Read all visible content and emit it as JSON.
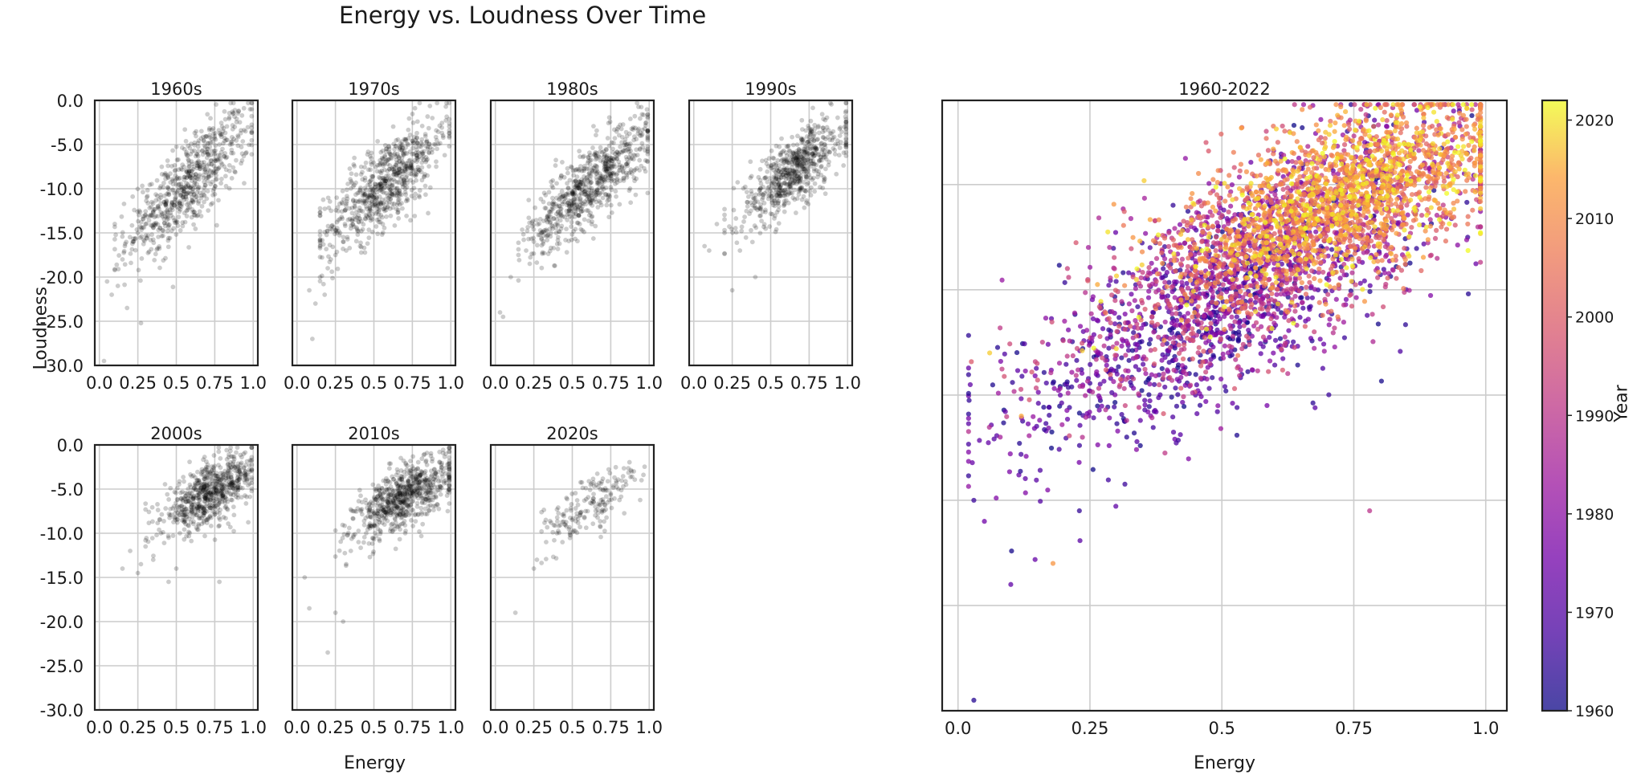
{
  "figure": {
    "title": "Energy vs. Loudness Over Time",
    "shared_ylabel": "Loudness",
    "shared_xlabel_small": "Energy",
    "large_xlabel": "Energy",
    "colorbar_label": "Year"
  },
  "chart_data": [
    {
      "type": "scatter",
      "title": "1960s",
      "xlabel": "",
      "ylabel": "Loudness",
      "xlim": [
        -0.03,
        1.03
      ],
      "ylim": [
        -30.0,
        0.0
      ],
      "xticks": [
        0.0,
        0.25,
        0.5,
        0.75,
        1.0
      ],
      "xtick_labels": [
        "0.0",
        "0.25",
        "0.5",
        "0.75",
        "1.0"
      ],
      "yticks": [
        0.0,
        -5.0,
        -10.0,
        -15.0,
        -20.0,
        -25.0,
        -30.0
      ],
      "ytick_labels": [
        "0.0",
        "-5.0",
        "-10.0",
        "-15.0",
        "-20.0",
        "-25.0",
        "-30.0"
      ],
      "grid": true,
      "point_color": "#000000",
      "point_alpha": 0.2,
      "x": [
        0.05,
        0.12,
        0.18,
        0.22,
        0.3,
        0.35,
        0.4,
        0.45,
        0.5,
        0.55,
        0.6,
        0.65,
        0.7,
        0.75,
        0.8,
        0.85,
        0.9,
        0.95,
        0.98,
        0.03,
        0.08,
        0.15,
        0.25,
        0.33,
        0.42,
        0.48,
        0.58,
        0.68,
        0.78,
        0.88
      ],
      "y": [
        -20.5,
        -21.0,
        -23.5,
        -16.0,
        -14.0,
        -12.5,
        -11.0,
        -10.0,
        -10.5,
        -9.0,
        -8.0,
        -7.5,
        -6.5,
        -6.0,
        -5.5,
        -5.0,
        -4.0,
        -3.5,
        -1.0,
        -29.5,
        -22.0,
        -18.0,
        -15.0,
        -13.0,
        -11.5,
        -9.5,
        -8.5,
        -7.0,
        -5.0,
        -3.0
      ],
      "cloud": {
        "count": 650,
        "x_mean": 0.58,
        "x_sd": 0.2,
        "slope": 15.5,
        "intercept": -18.5,
        "noise": 2.6,
        "x_min": 0.1,
        "x_max": 0.99
      }
    },
    {
      "type": "scatter",
      "title": "1970s",
      "xlabel": "",
      "ylabel": "",
      "xlim": [
        -0.03,
        1.03
      ],
      "ylim": [
        -30.0,
        0.0
      ],
      "xticks": [
        0.0,
        0.25,
        0.5,
        0.75,
        1.0
      ],
      "xtick_labels": [
        "0.0",
        "0.25",
        "0.5",
        "0.75",
        "1.0"
      ],
      "yticks": [
        0.0,
        -5.0,
        -10.0,
        -15.0,
        -20.0,
        -25.0,
        -30.0
      ],
      "ytick_labels": [],
      "grid": true,
      "point_color": "#000000",
      "point_alpha": 0.2,
      "x": [
        0.1,
        0.15,
        0.2,
        0.25,
        0.3,
        0.35,
        0.4,
        0.45,
        0.5,
        0.55,
        0.6,
        0.65,
        0.7,
        0.75,
        0.8,
        0.85,
        0.9,
        0.95,
        0.12,
        0.18,
        0.28,
        0.38,
        0.48,
        0.58,
        0.68,
        0.78,
        0.88,
        0.08,
        0.22,
        0.32
      ],
      "y": [
        -27.0,
        -20.0,
        -19.0,
        -17.5,
        -16.0,
        -14.5,
        -13.0,
        -12.0,
        -11.0,
        -10.0,
        -9.0,
        -8.5,
        -8.0,
        -7.0,
        -6.0,
        -5.5,
        -5.0,
        -4.0,
        -23.0,
        -22.0,
        -15.0,
        -13.5,
        -12.5,
        -10.5,
        -8.0,
        -6.5,
        -2.0,
        -21.5,
        -18.0,
        -17.0
      ],
      "cloud": {
        "count": 700,
        "x_mean": 0.58,
        "x_sd": 0.2,
        "slope": 14.0,
        "intercept": -17.5,
        "noise": 2.4,
        "x_min": 0.15,
        "x_max": 0.99
      }
    },
    {
      "type": "scatter",
      "title": "1980s",
      "xlabel": "",
      "ylabel": "",
      "xlim": [
        -0.03,
        1.03
      ],
      "ylim": [
        -30.0,
        0.0
      ],
      "xticks": [
        0.0,
        0.25,
        0.5,
        0.75,
        1.0
      ],
      "xtick_labels": [
        "0.0",
        "0.25",
        "0.5",
        "0.75",
        "1.0"
      ],
      "yticks": [
        0.0,
        -5.0,
        -10.0,
        -15.0,
        -20.0,
        -25.0,
        -30.0
      ],
      "ytick_labels": [],
      "grid": true,
      "point_color": "#000000",
      "point_alpha": 0.2,
      "x": [
        0.03,
        0.05,
        0.1,
        0.15,
        0.2,
        0.25,
        0.3,
        0.35,
        0.4,
        0.45,
        0.5,
        0.55,
        0.6,
        0.65,
        0.7,
        0.75,
        0.8,
        0.85,
        0.9,
        0.95,
        0.98
      ],
      "y": [
        -24.0,
        -24.5,
        -20.0,
        -17.5,
        -17.0,
        -16.0,
        -15.0,
        -13.5,
        -12.0,
        -11.5,
        -10.5,
        -9.5,
        -9.0,
        -8.0,
        -7.0,
        -6.5,
        -6.0,
        -5.0,
        -4.5,
        -4.0,
        -2.5
      ],
      "cloud": {
        "count": 700,
        "x_mean": 0.62,
        "x_sd": 0.2,
        "slope": 14.5,
        "intercept": -18.5,
        "noise": 2.2,
        "x_min": 0.15,
        "x_max": 0.99
      }
    },
    {
      "type": "scatter",
      "title": "1990s",
      "xlabel": "",
      "ylabel": "",
      "xlim": [
        -0.03,
        1.03
      ],
      "ylim": [
        -30.0,
        0.0
      ],
      "xticks": [
        0.0,
        0.25,
        0.5,
        0.75,
        1.0
      ],
      "xtick_labels": [
        "0.0",
        "0.25",
        "0.5",
        "0.75",
        "1.0"
      ],
      "yticks": [
        0.0,
        -5.0,
        -10.0,
        -15.0,
        -20.0,
        -25.0,
        -30.0
      ],
      "ytick_labels": [],
      "grid": true,
      "point_color": "#000000",
      "point_alpha": 0.2,
      "x": [
        0.07,
        0.1,
        0.15,
        0.2,
        0.25,
        0.3,
        0.35,
        0.4,
        0.45,
        0.5,
        0.55,
        0.6,
        0.65,
        0.7,
        0.75,
        0.8,
        0.85,
        0.9,
        0.95,
        0.98
      ],
      "y": [
        -16.5,
        -17.0,
        -14.0,
        -15.0,
        -21.5,
        -17.0,
        -12.0,
        -20.0,
        -11.0,
        -10.0,
        -9.0,
        -8.5,
        -8.0,
        -7.0,
        -6.0,
        -5.5,
        -5.0,
        -4.5,
        -4.0,
        -3.0
      ],
      "cloud": {
        "count": 650,
        "x_mean": 0.65,
        "x_sd": 0.18,
        "slope": 13.0,
        "intercept": -16.5,
        "noise": 2.0,
        "x_min": 0.2,
        "x_max": 0.99
      }
    },
    {
      "type": "scatter",
      "title": "2000s",
      "xlabel": "",
      "ylabel": "Loudness",
      "xlim": [
        -0.03,
        1.03
      ],
      "ylim": [
        -30.0,
        0.0
      ],
      "xticks": [
        0.0,
        0.25,
        0.5,
        0.75,
        1.0
      ],
      "xtick_labels": [
        "0.0",
        "0.25",
        "0.5",
        "0.75",
        "1.0"
      ],
      "yticks": [
        0.0,
        -5.0,
        -10.0,
        -15.0,
        -20.0,
        -25.0,
        -30.0
      ],
      "ytick_labels": [
        "0.0",
        "-5.0",
        "-10.0",
        "-15.0",
        "-20.0",
        "-25.0",
        "-30.0"
      ],
      "grid": true,
      "point_color": "#000000",
      "point_alpha": 0.2,
      "x": [
        0.15,
        0.2,
        0.25,
        0.3,
        0.35,
        0.4,
        0.45,
        0.5,
        0.55,
        0.6,
        0.65,
        0.7,
        0.75,
        0.8,
        0.85,
        0.9,
        0.95,
        0.27,
        0.45,
        0.78
      ],
      "y": [
        -14.0,
        -12.0,
        -14.5,
        -11.5,
        -13.0,
        -10.0,
        -15.5,
        -14.0,
        -8.0,
        -7.5,
        -7.0,
        -6.0,
        -5.5,
        -5.0,
        -4.5,
        -4.0,
        -3.0,
        -13.5,
        -10.5,
        -15.5
      ],
      "cloud": {
        "count": 650,
        "x_mean": 0.72,
        "x_sd": 0.15,
        "slope": 9.0,
        "intercept": -12.0,
        "noise": 1.6,
        "x_min": 0.3,
        "x_max": 0.99
      }
    },
    {
      "type": "scatter",
      "title": "2010s",
      "xlabel": "",
      "ylabel": "",
      "xlim": [
        -0.03,
        1.03
      ],
      "ylim": [
        -30.0,
        0.0
      ],
      "xticks": [
        0.0,
        0.25,
        0.5,
        0.75,
        1.0
      ],
      "xtick_labels": [
        "0.0",
        "0.25",
        "0.5",
        "0.75",
        "1.0"
      ],
      "yticks": [
        0.0,
        -5.0,
        -10.0,
        -15.0,
        -20.0,
        -25.0,
        -30.0
      ],
      "ytick_labels": [],
      "grid": true,
      "point_color": "#000000",
      "point_alpha": 0.2,
      "x": [
        0.05,
        0.08,
        0.2,
        0.25,
        0.3,
        0.32,
        0.35,
        0.4,
        0.45,
        0.5,
        0.55,
        0.6,
        0.65,
        0.7,
        0.75,
        0.8,
        0.85,
        0.9,
        0.95,
        0.98
      ],
      "y": [
        -15.0,
        -18.5,
        -23.5,
        -19.0,
        -20.0,
        -13.5,
        -12.0,
        -11.0,
        -10.0,
        -9.0,
        -8.0,
        -7.5,
        -7.0,
        -6.0,
        -5.5,
        -5.0,
        -4.5,
        -4.0,
        -3.0,
        -7.5
      ],
      "cloud": {
        "count": 700,
        "x_mean": 0.7,
        "x_sd": 0.16,
        "slope": 9.5,
        "intercept": -12.5,
        "noise": 1.7,
        "x_min": 0.25,
        "x_max": 0.99
      }
    },
    {
      "type": "scatter",
      "title": "2020s",
      "xlabel": "",
      "ylabel": "",
      "xlim": [
        -0.03,
        1.03
      ],
      "ylim": [
        -30.0,
        0.0
      ],
      "xticks": [
        0.0,
        0.25,
        0.5,
        0.75,
        1.0
      ],
      "xtick_labels": [
        "0.0",
        "0.25",
        "0.5",
        "0.75",
        "1.0"
      ],
      "yticks": [
        0.0,
        -5.0,
        -10.0,
        -15.0,
        -20.0,
        -25.0,
        -30.0
      ],
      "ytick_labels": [],
      "grid": true,
      "point_color": "#000000",
      "point_alpha": 0.2,
      "x": [
        0.13,
        0.25,
        0.27,
        0.33,
        0.4,
        0.45,
        0.5,
        0.55,
        0.6,
        0.65,
        0.7,
        0.75,
        0.8,
        0.85,
        0.9,
        0.95
      ],
      "y": [
        -19.0,
        -14.0,
        -13.0,
        -11.0,
        -10.0,
        -9.0,
        -8.5,
        -8.0,
        -7.5,
        -7.0,
        -6.5,
        -5.5,
        -5.0,
        -4.5,
        -3.0,
        -4.0
      ],
      "cloud": {
        "count": 170,
        "x_mean": 0.62,
        "x_sd": 0.17,
        "slope": 10.0,
        "intercept": -13.0,
        "noise": 1.7,
        "x_min": 0.3,
        "x_max": 0.97
      }
    },
    {
      "type": "scatter",
      "title": "1960-2022",
      "xlabel": "Energy",
      "ylabel": "",
      "xlim": [
        -0.03,
        1.04
      ],
      "ylim": [
        -30.0,
        -1.0
      ],
      "xticks": [
        0.0,
        0.25,
        0.5,
        0.75,
        1.0
      ],
      "xtick_labels": [
        "0.0",
        "0.25",
        "0.5",
        "0.75",
        "1.0"
      ],
      "yticks": [
        -5.0,
        -10.0,
        -15.0,
        -20.0,
        -25.0
      ],
      "ytick_labels": [],
      "grid": true,
      "colormap": "plasma",
      "point_alpha": 0.75,
      "color_by": "Year",
      "color_range": [
        1960,
        2022
      ],
      "points": [
        {
          "x": 0.03,
          "y": -29.5,
          "year": 1963
        },
        {
          "x": 0.1,
          "y": -24.0,
          "year": 1972
        },
        {
          "x": 0.18,
          "y": -23.0,
          "year": 2012
        },
        {
          "x": 0.03,
          "y": -20.0,
          "year": 1966
        },
        {
          "x": 0.05,
          "y": -21.0,
          "year": 1975
        },
        {
          "x": 0.08,
          "y": -17.0,
          "year": 1985
        },
        {
          "x": 0.06,
          "y": -13.0,
          "year": 2018
        },
        {
          "x": 0.12,
          "y": -16.0,
          "year": 2015
        },
        {
          "x": 0.15,
          "y": -13.5,
          "year": 1995
        },
        {
          "x": 0.95,
          "y": -1.5,
          "year": 1968
        },
        {
          "x": 0.88,
          "y": -2.5,
          "year": 2020
        },
        {
          "x": 0.47,
          "y": -3.0,
          "year": 1998
        },
        {
          "x": 0.23,
          "y": -20.5,
          "year": 1965
        },
        {
          "x": 0.45,
          "y": -15.0,
          "year": 1970
        },
        {
          "x": 0.78,
          "y": -20.5,
          "year": 1990
        }
      ],
      "clusters": [
        {
          "year_min": 1960,
          "year_max": 1979,
          "count": 1100,
          "x_mean": 0.5,
          "x_sd": 0.2,
          "slope": 14.0,
          "intercept": -17.5,
          "noise": 2.5
        },
        {
          "year_min": 1980,
          "year_max": 1999,
          "count": 1300,
          "x_mean": 0.6,
          "x_sd": 0.2,
          "slope": 13.0,
          "intercept": -16.0,
          "noise": 2.3
        },
        {
          "year_min": 2000,
          "year_max": 2022,
          "count": 1800,
          "x_mean": 0.72,
          "x_sd": 0.15,
          "slope": 9.0,
          "intercept": -12.2,
          "noise": 1.8
        }
      ]
    },
    {
      "type": "colorbar",
      "label": "Year",
      "range": [
        1960,
        2022
      ],
      "ticks": [
        1960,
        1970,
        1980,
        1990,
        2000,
        2010,
        2020
      ],
      "tick_labels": [
        "1960",
        "1970",
        "1980",
        "1990",
        "2000",
        "2010",
        "2020"
      ],
      "colormap": "plasma"
    }
  ]
}
